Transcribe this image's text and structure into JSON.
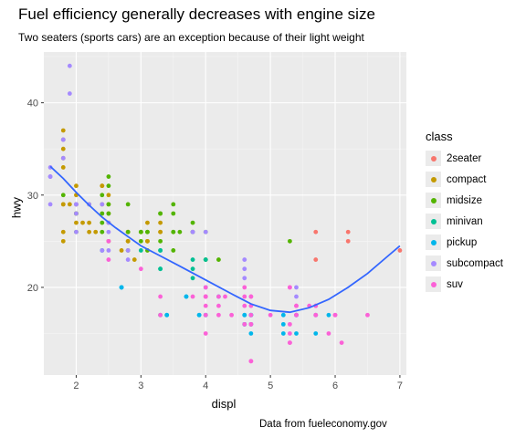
{
  "colors": {
    "panel": "#ebebeb",
    "grid_major": "#ffffff",
    "smooth_line": "#3366ff",
    "axis_text": "#4d4d4d"
  },
  "chart_data": {
    "type": "scatter",
    "title": "Fuel efficiency generally decreases with engine size",
    "subtitle": "Two seaters (sports cars) are an exception because of their light weight",
    "caption": "Data from fueleconomy.gov",
    "xlabel": "displ",
    "ylabel": "hwy",
    "xlim": [
      1.5,
      7.1
    ],
    "ylim": [
      10.5,
      45.5
    ],
    "x_ticks": [
      2,
      3,
      4,
      5,
      6,
      7
    ],
    "y_ticks": [
      20,
      30,
      40
    ],
    "legend_title": "class",
    "legend_position": "right",
    "series": [
      {
        "name": "2seater",
        "color": "#f8766d",
        "points": [
          [
            5.7,
            26
          ],
          [
            5.7,
            23
          ],
          [
            6.2,
            26
          ],
          [
            6.2,
            25
          ],
          [
            7.0,
            24
          ]
        ]
      },
      {
        "name": "compact",
        "color": "#c49a00",
        "points": [
          [
            1.8,
            29
          ],
          [
            1.8,
            29
          ],
          [
            2.0,
            31
          ],
          [
            2.0,
            30
          ],
          [
            2.8,
            26
          ],
          [
            2.8,
            26
          ],
          [
            3.1,
            27
          ],
          [
            1.8,
            26
          ],
          [
            1.8,
            25
          ],
          [
            2.0,
            28
          ],
          [
            2.0,
            27
          ],
          [
            2.8,
            25
          ],
          [
            2.8,
            25
          ],
          [
            3.1,
            25
          ],
          [
            3.1,
            25
          ],
          [
            2.2,
            26
          ],
          [
            2.2,
            27
          ],
          [
            2.4,
            31
          ],
          [
            2.4,
            31
          ],
          [
            3.0,
            26
          ],
          [
            3.3,
            26
          ],
          [
            2.5,
            25
          ],
          [
            2.5,
            27
          ],
          [
            1.8,
            36
          ],
          [
            1.8,
            37
          ],
          [
            1.8,
            35
          ],
          [
            1.9,
            29
          ],
          [
            2.0,
            29
          ],
          [
            2.0,
            29
          ],
          [
            2.5,
            30
          ],
          [
            2.5,
            28
          ],
          [
            2.5,
            29
          ],
          [
            2.4,
            29
          ],
          [
            2.7,
            24
          ],
          [
            2.9,
            23
          ],
          [
            3.3,
            26
          ],
          [
            3.3,
            27
          ],
          [
            1.8,
            33
          ],
          [
            1.8,
            34
          ],
          [
            2.1,
            27
          ],
          [
            2.3,
            26
          ]
        ]
      },
      {
        "name": "midsize",
        "color": "#53b400",
        "points": [
          [
            2.4,
            27
          ],
          [
            2.4,
            30
          ],
          [
            3.1,
            26
          ],
          [
            3.5,
            29
          ],
          [
            3.6,
            26
          ],
          [
            2.4,
            26
          ],
          [
            3.0,
            26
          ],
          [
            3.3,
            28
          ],
          [
            2.5,
            32
          ],
          [
            2.5,
            31
          ],
          [
            3.8,
            27
          ],
          [
            3.8,
            26
          ],
          [
            3.8,
            26
          ],
          [
            5.3,
            25
          ],
          [
            2.0,
            28
          ],
          [
            2.0,
            26
          ],
          [
            2.8,
            26
          ],
          [
            2.8,
            24
          ],
          [
            3.1,
            24
          ],
          [
            3.1,
            26
          ],
          [
            3.3,
            25
          ],
          [
            3.3,
            28
          ],
          [
            3.5,
            28
          ],
          [
            3.5,
            26
          ],
          [
            4.0,
            26
          ],
          [
            4.2,
            23
          ],
          [
            2.5,
            29
          ],
          [
            2.5,
            28
          ],
          [
            3.0,
            25
          ],
          [
            3.5,
            26
          ],
          [
            1.8,
            30
          ],
          [
            2.2,
            29
          ],
          [
            2.4,
            28
          ],
          [
            2.8,
            29
          ],
          [
            3.0,
            26
          ],
          [
            3.5,
            24
          ],
          [
            4.0,
            23
          ]
        ]
      },
      {
        "name": "minivan",
        "color": "#00c094",
        "points": [
          [
            2.4,
            24
          ],
          [
            3.0,
            24
          ],
          [
            3.3,
            22
          ],
          [
            3.3,
            22
          ],
          [
            3.3,
            24
          ],
          [
            3.3,
            24
          ],
          [
            3.3,
            17
          ],
          [
            3.8,
            22
          ],
          [
            3.8,
            21
          ],
          [
            3.8,
            23
          ],
          [
            4.0,
            23
          ]
        ]
      },
      {
        "name": "pickup",
        "color": "#00b6eb",
        "points": [
          [
            2.7,
            20
          ],
          [
            2.7,
            20
          ],
          [
            2.7,
            20
          ],
          [
            3.7,
            19
          ],
          [
            3.7,
            19
          ],
          [
            3.9,
            17
          ],
          [
            3.9,
            17
          ],
          [
            4.7,
            16
          ],
          [
            4.7,
            16
          ],
          [
            4.7,
            17
          ],
          [
            4.7,
            17
          ],
          [
            5.2,
            15
          ],
          [
            5.2,
            17
          ],
          [
            5.7,
            17
          ],
          [
            5.9,
            17
          ],
          [
            4.7,
            17
          ],
          [
            5.2,
            16
          ],
          [
            5.7,
            15
          ],
          [
            4.2,
            19
          ],
          [
            4.6,
            17
          ],
          [
            4.6,
            16
          ],
          [
            4.6,
            17
          ],
          [
            4.6,
            16
          ],
          [
            5.4,
            17
          ],
          [
            5.4,
            15
          ],
          [
            5.4,
            17
          ],
          [
            3.4,
            17
          ],
          [
            3.4,
            17
          ],
          [
            4.0,
            20
          ],
          [
            4.0,
            17
          ],
          [
            4.0,
            17
          ],
          [
            4.7,
            15
          ]
        ]
      },
      {
        "name": "subcompact",
        "color": "#a58aff",
        "points": [
          [
            1.6,
            33
          ],
          [
            1.6,
            32
          ],
          [
            1.6,
            32
          ],
          [
            1.6,
            29
          ],
          [
            1.6,
            32
          ],
          [
            1.8,
            34
          ],
          [
            1.8,
            36
          ],
          [
            1.8,
            36
          ],
          [
            2.0,
            29
          ],
          [
            2.4,
            29
          ],
          [
            2.4,
            24
          ],
          [
            2.5,
            24
          ],
          [
            2.5,
            26
          ],
          [
            3.8,
            26
          ],
          [
            3.8,
            26
          ],
          [
            4.6,
            23
          ],
          [
            4.6,
            22
          ],
          [
            4.6,
            21
          ],
          [
            5.4,
            20
          ],
          [
            1.9,
            44
          ],
          [
            1.9,
            41
          ],
          [
            2.0,
            29
          ],
          [
            2.0,
            26
          ],
          [
            2.0,
            28
          ],
          [
            2.0,
            29
          ],
          [
            2.2,
            29
          ],
          [
            2.5,
            27
          ],
          [
            4.0,
            26
          ],
          [
            5.4,
            19
          ],
          [
            2.8,
            24
          ],
          [
            2.8,
            23
          ]
        ]
      },
      {
        "name": "suv",
        "color": "#fb61d7",
        "points": [
          [
            5.3,
            20
          ],
          [
            5.3,
            15
          ],
          [
            5.3,
            20
          ],
          [
            5.7,
            17
          ],
          [
            6.0,
            17
          ],
          [
            5.7,
            18
          ],
          [
            6.5,
            17
          ],
          [
            4.0,
            19
          ],
          [
            4.0,
            19
          ],
          [
            4.6,
            18
          ],
          [
            5.0,
            17
          ],
          [
            4.7,
            19
          ],
          [
            4.7,
            19
          ],
          [
            4.7,
            12
          ],
          [
            5.7,
            17
          ],
          [
            6.1,
            14
          ],
          [
            4.0,
            15
          ],
          [
            4.2,
            17
          ],
          [
            4.4,
            17
          ],
          [
            4.6,
            16
          ],
          [
            5.4,
            18
          ],
          [
            5.4,
            17
          ],
          [
            5.4,
            17
          ],
          [
            5.3,
            16
          ],
          [
            5.3,
            14
          ],
          [
            5.6,
            18
          ],
          [
            3.3,
            17
          ],
          [
            3.8,
            19
          ],
          [
            4.0,
            19
          ],
          [
            4.7,
            12
          ],
          [
            4.7,
            17
          ],
          [
            5.7,
            18
          ],
          [
            2.5,
            25
          ],
          [
            2.5,
            23
          ],
          [
            3.0,
            22
          ],
          [
            3.3,
            19
          ],
          [
            4.0,
            18
          ],
          [
            4.0,
            17
          ],
          [
            4.0,
            20
          ],
          [
            4.0,
            19
          ],
          [
            4.7,
            18
          ],
          [
            4.7,
            16
          ],
          [
            5.3,
            14
          ],
          [
            5.9,
            15
          ],
          [
            4.2,
            18
          ],
          [
            4.2,
            19
          ],
          [
            4.6,
            20
          ],
          [
            4.6,
            19
          ],
          [
            5.4,
            18
          ],
          [
            6.0,
            17
          ],
          [
            4.7,
            16
          ],
          [
            4.3,
            19
          ]
        ]
      }
    ],
    "smooth": {
      "name": "loess",
      "points": [
        [
          1.6,
          33.1
        ],
        [
          1.8,
          31.8
        ],
        [
          2.0,
          30.3
        ],
        [
          2.2,
          28.9
        ],
        [
          2.4,
          27.6
        ],
        [
          2.6,
          26.5
        ],
        [
          2.8,
          25.5
        ],
        [
          3.0,
          24.5
        ],
        [
          3.3,
          23.4
        ],
        [
          3.6,
          22.3
        ],
        [
          4.0,
          20.8
        ],
        [
          4.4,
          19.3
        ],
        [
          4.7,
          18.2
        ],
        [
          5.0,
          17.5
        ],
        [
          5.3,
          17.3
        ],
        [
          5.6,
          17.8
        ],
        [
          5.9,
          18.7
        ],
        [
          6.2,
          20.0
        ],
        [
          6.5,
          21.5
        ],
        [
          6.8,
          23.3
        ],
        [
          7.0,
          24.5
        ]
      ]
    }
  }
}
